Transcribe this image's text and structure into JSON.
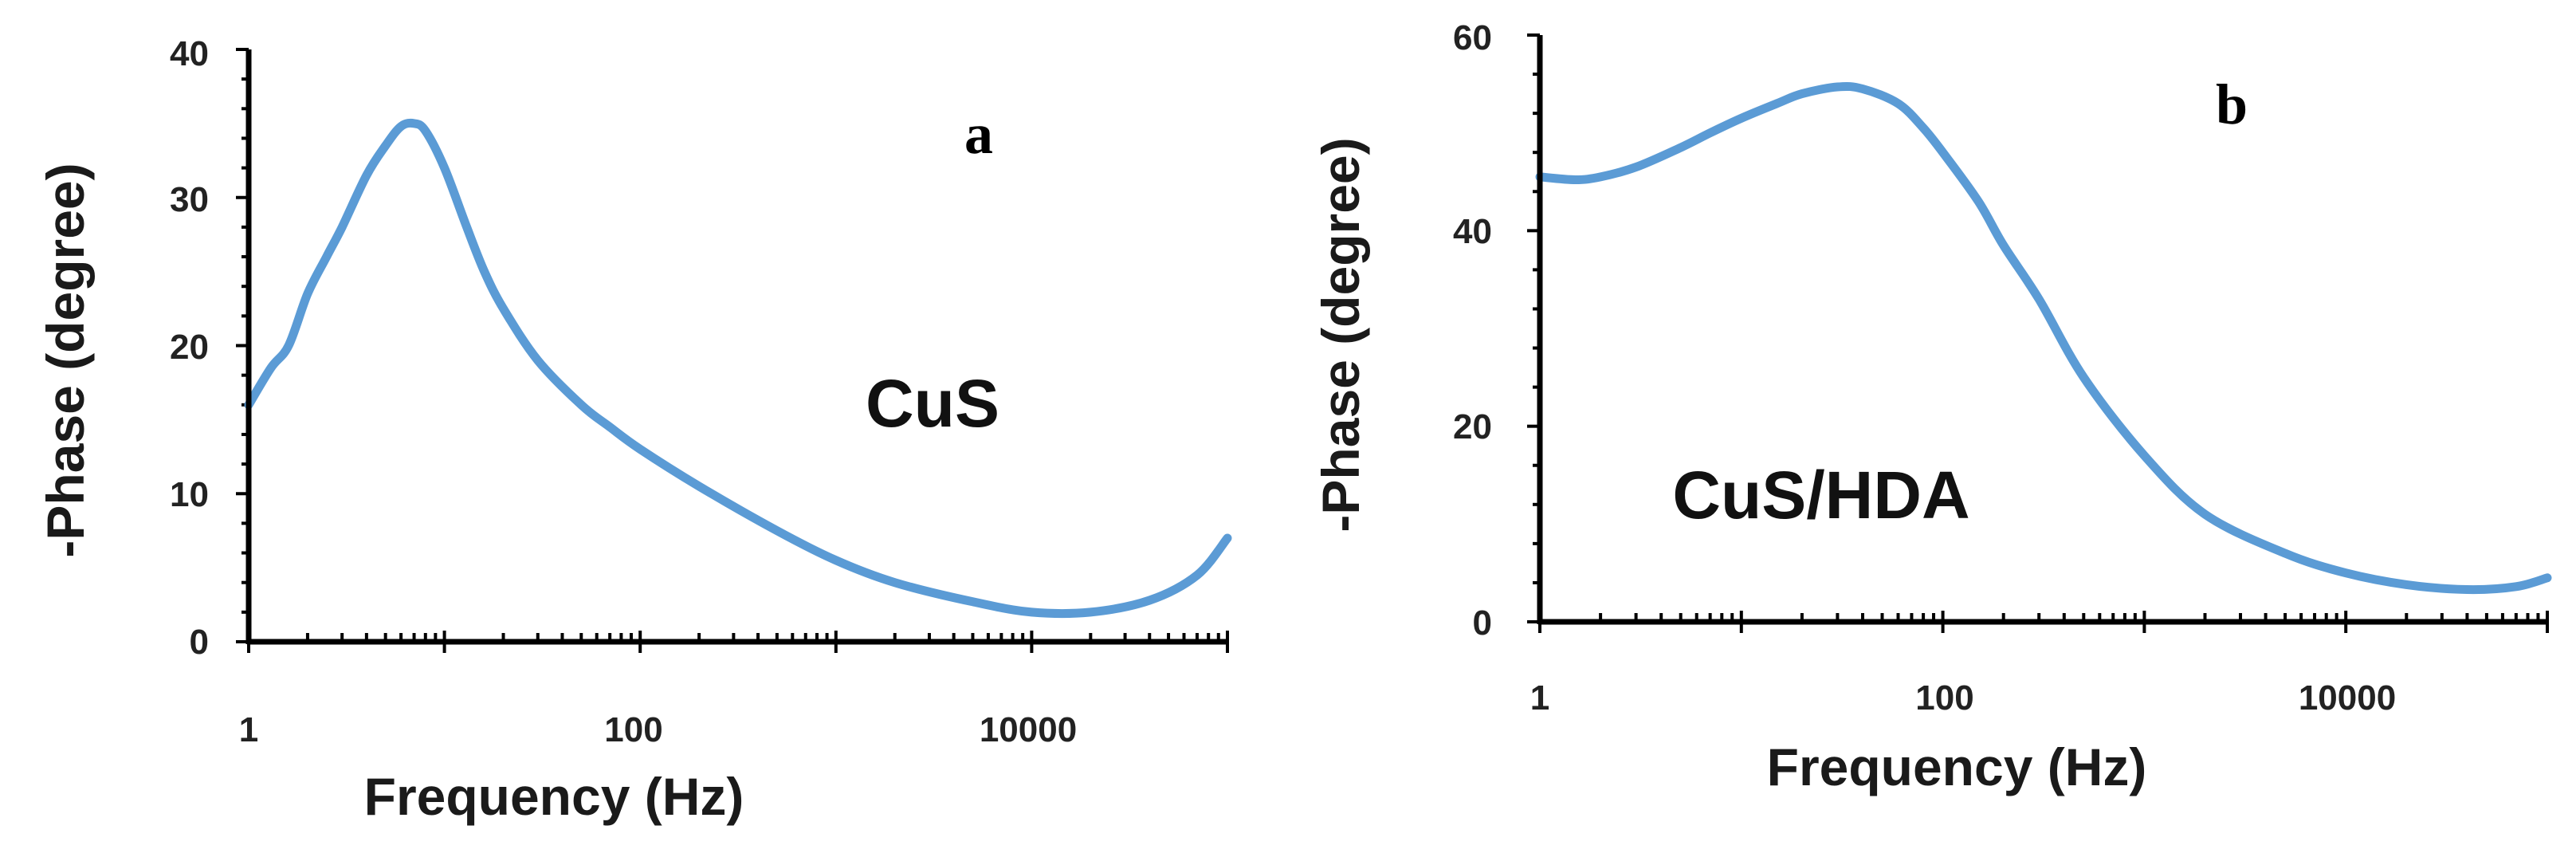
{
  "colors": {
    "series": "#5b9bd5",
    "axis": "#000000",
    "text": "#222222"
  },
  "chart_data": [
    {
      "type": "line",
      "panel_label": "a",
      "xlabel": "Frequency (Hz)",
      "ylabel": "-Phase (degree)",
      "x_scale": "log",
      "xlim": [
        1,
        100000
      ],
      "ylim": [
        0,
        40
      ],
      "x_ticks": [
        1,
        100,
        10000
      ],
      "x_tick_labels": [
        "1",
        "100",
        "10000"
      ],
      "y_ticks": [
        0,
        10,
        20,
        30,
        40
      ],
      "y_tick_labels": [
        "0",
        "10",
        "20",
        "30",
        "40"
      ],
      "grid": false,
      "series": [
        {
          "name": "CuS",
          "x": [
            1,
            1.3,
            1.6,
            2,
            2.5,
            3,
            4,
            5,
            6,
            7,
            8,
            10,
            13,
            16,
            20,
            30,
            50,
            70,
            100,
            200,
            500,
            1000,
            2000,
            5000,
            10000,
            20000,
            40000,
            70000,
            100000
          ],
          "y": [
            16,
            18.5,
            20,
            23.5,
            26,
            28,
            31.5,
            33.5,
            34.8,
            35,
            34.5,
            32,
            28,
            25,
            22.5,
            19,
            16,
            14.5,
            13,
            10.5,
            7.5,
            5.5,
            4,
            2.7,
            2,
            2,
            2.8,
            4.5,
            7
          ]
        }
      ]
    },
    {
      "type": "line",
      "panel_label": "b",
      "xlabel": "Frequency (Hz)",
      "ylabel": "-Phase (degree)",
      "x_scale": "log",
      "xlim": [
        1,
        100000
      ],
      "ylim": [
        0,
        60
      ],
      "x_ticks": [
        1,
        100,
        10000
      ],
      "x_tick_labels": [
        "1",
        "100",
        "10000"
      ],
      "y_ticks": [
        0,
        20,
        40,
        60
      ],
      "y_tick_labels": [
        "0",
        "20",
        "40",
        "60"
      ],
      "grid": false,
      "series": [
        {
          "name": "CuS/HDA",
          "x": [
            1,
            1.5,
            2,
            3,
            5,
            7,
            10,
            15,
            20,
            30,
            40,
            60,
            80,
            100,
            150,
            200,
            300,
            500,
            1000,
            2000,
            5000,
            10000,
            20000,
            40000,
            70000,
            100000
          ],
          "y": [
            45.5,
            45.2,
            45.5,
            46.5,
            48.5,
            50,
            51.5,
            53,
            54,
            54.7,
            54.5,
            53,
            50.5,
            48,
            43,
            38.5,
            33,
            25,
            17,
            11,
            7,
            5,
            3.8,
            3.3,
            3.6,
            4.5
          ]
        }
      ]
    }
  ]
}
